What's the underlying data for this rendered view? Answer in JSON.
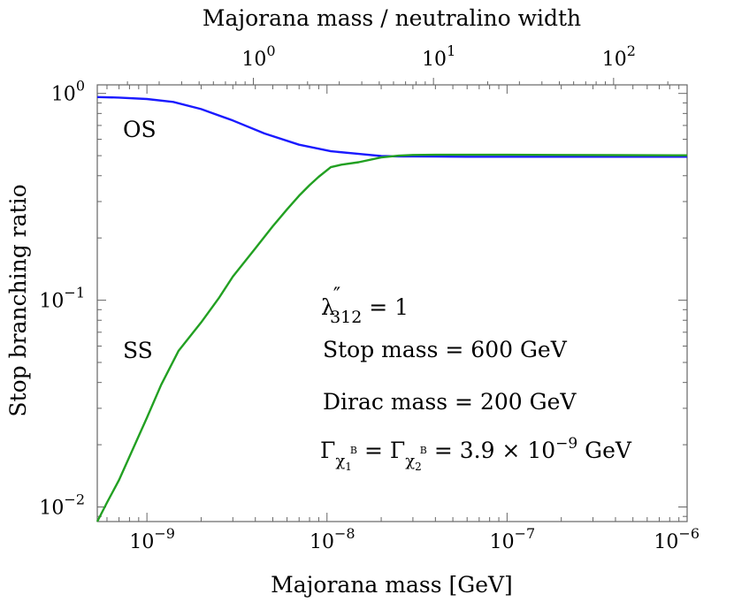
{
  "chart_data": {
    "type": "line",
    "xlabel": "Majorana mass [GeV]",
    "ylabel": "Stop branching ratio",
    "top_xlabel": "Majorana mass / neutralino width",
    "x_scale": "log",
    "y_scale": "log",
    "xlim": [
      5.3e-10,
      1e-06
    ],
    "ylim": [
      0.0085,
      1.1
    ],
    "top_xlim": [
      0.136,
      256
    ],
    "x_ticks": [
      {
        "value": 1e-09,
        "base": "10",
        "exp": "−9"
      },
      {
        "value": 1e-08,
        "base": "10",
        "exp": "−8"
      },
      {
        "value": 1e-07,
        "base": "10",
        "exp": "−7"
      },
      {
        "value": 1e-06,
        "base": "10",
        "exp": "−6"
      }
    ],
    "y_ticks": [
      {
        "value": 1,
        "base": "10",
        "exp": "0"
      },
      {
        "value": 0.1,
        "base": "10",
        "exp": "−1"
      },
      {
        "value": 0.01,
        "base": "10",
        "exp": "−2"
      }
    ],
    "top_ticks": [
      {
        "value": 1,
        "base": "10",
        "exp": "0"
      },
      {
        "value": 10,
        "base": "10",
        "exp": "1"
      },
      {
        "value": 100,
        "base": "10",
        "exp": "2"
      }
    ],
    "series": [
      {
        "name": "OS",
        "color": "#1a1aff",
        "x": [
          5.3e-10,
          7e-10,
          1e-09,
          1.4e-09,
          2e-09,
          3e-09,
          4.5e-09,
          7e-09,
          1.05e-08,
          1.5e-08,
          2e-08,
          2.5e-08,
          3e-08,
          4e-08,
          6e-08,
          1e-07,
          2e-07,
          4e-07,
          1e-06
        ],
        "y": [
          0.96,
          0.955,
          0.94,
          0.91,
          0.84,
          0.74,
          0.64,
          0.565,
          0.525,
          0.51,
          0.498,
          0.496,
          0.496,
          0.495,
          0.494,
          0.494,
          0.494,
          0.494,
          0.494
        ]
      },
      {
        "name": "SS",
        "color": "#22a022",
        "x": [
          5.3e-10,
          6e-10,
          7e-10,
          8e-10,
          9e-10,
          1e-09,
          1.2e-09,
          1.5e-09,
          2e-09,
          2.5e-09,
          3e-09,
          4e-09,
          5e-09,
          6e-09,
          7e-09,
          8e-09,
          9e-09,
          1.05e-08,
          1.2e-08,
          1.5e-08,
          2e-08,
          2.5e-08,
          3e-08,
          4e-08,
          6e-08,
          1e-07,
          2e-07,
          4e-07,
          1e-06
        ],
        "y": [
          0.0085,
          0.0105,
          0.0135,
          0.0175,
          0.022,
          0.027,
          0.039,
          0.057,
          0.078,
          0.102,
          0.13,
          0.178,
          0.228,
          0.275,
          0.32,
          0.36,
          0.395,
          0.44,
          0.452,
          0.465,
          0.49,
          0.5,
          0.504,
          0.505,
          0.505,
          0.505,
          0.504,
          0.503,
          0.502
        ]
      }
    ],
    "annotations": [
      {
        "text": "OS"
      },
      {
        "text": "SS"
      }
    ]
  },
  "legend_text": {
    "lambda_sym": "λ",
    "lambda_prime": "″",
    "lambda_sub": "312",
    "lambda_eq": " = 1",
    "stop_mass": "Stop mass = 600 GeV",
    "dirac_mass": "Dirac mass = 200 GeV",
    "gamma_sym": "Γ",
    "chi_sym": "χ",
    "chi_sub1": "1",
    "chi_sub2": "2",
    "chi_sup": "B",
    "eq_sign": " = ",
    "gamma_value": " = 3.9 × 10",
    "gamma_exp": "−9",
    "gamma_unit": " GeV"
  }
}
